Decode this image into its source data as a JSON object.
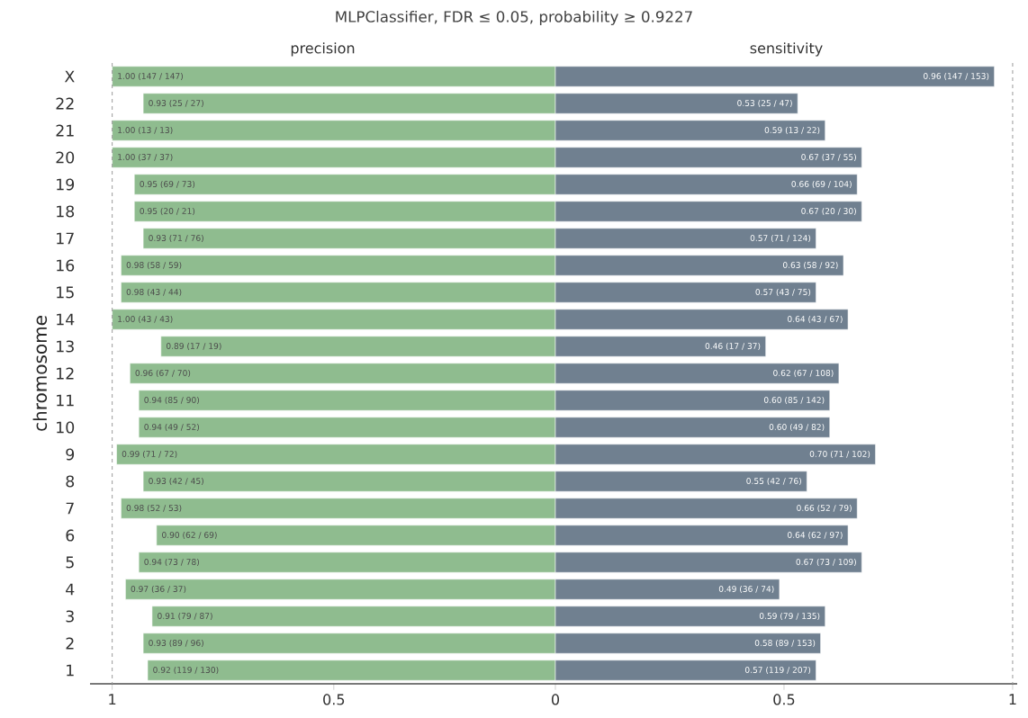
{
  "chart_data": [
    {
      "type": "bar",
      "orientation": "horizontal",
      "title": "MLPClassifier, FDR ≤ 0.05, probability ≥ 0.9227",
      "subtitle": "precision",
      "ylabel": "chromosome",
      "categories": [
        "X",
        "22",
        "21",
        "20",
        "19",
        "18",
        "17",
        "16",
        "15",
        "14",
        "13",
        "12",
        "11",
        "10",
        "9",
        "8",
        "7",
        "6",
        "5",
        "4",
        "3",
        "2",
        "1"
      ],
      "values": [
        1.0,
        0.93,
        1.0,
        1.0,
        0.95,
        0.95,
        0.93,
        0.98,
        0.98,
        1.0,
        0.89,
        0.96,
        0.94,
        0.94,
        0.99,
        0.93,
        0.98,
        0.9,
        0.94,
        0.97,
        0.91,
        0.93,
        0.92
      ],
      "value_labels": [
        "1.00 (147 / 147)",
        "0.93 (25 / 27)",
        "1.00 (13 / 13)",
        "1.00 (37 / 37)",
        "0.95 (69 / 73)",
        "0.95 (20 / 21)",
        "0.93 (71 / 76)",
        "0.98 (58 / 59)",
        "0.98 (43 / 44)",
        "1.00 (43 / 43)",
        "0.89 (17 / 19)",
        "0.96 (67 / 70)",
        "0.94 (85 / 90)",
        "0.94 (49 / 52)",
        "0.99 (71 / 72)",
        "0.93 (42 / 45)",
        "0.98 (52 / 53)",
        "0.90 (62 / 69)",
        "0.94 (73 / 78)",
        "0.97 (36 / 37)",
        "0.91 (79 / 87)",
        "0.93 (89 / 96)",
        "0.92 (119 / 130)"
      ],
      "color": "#8fbc8f",
      "xlim": [
        1.05,
        0
      ],
      "xticks": [
        1,
        0.5,
        0
      ],
      "ref_lines": [
        {
          "axis": "x",
          "value": 1,
          "color": "#a0a0a0",
          "line_style": "dashed"
        }
      ]
    },
    {
      "type": "bar",
      "orientation": "horizontal",
      "subtitle": "sensitivity",
      "categories": [
        null,
        null,
        null,
        null,
        null,
        null,
        null,
        null,
        null,
        null,
        null,
        null,
        null,
        null,
        null,
        null,
        null,
        null,
        null,
        null,
        null,
        null,
        null
      ],
      "values": [
        0.96,
        0.53,
        0.59,
        0.67,
        0.66,
        0.67,
        0.57,
        0.63,
        0.57,
        0.64,
        0.46,
        0.62,
        0.6,
        0.6,
        0.7,
        0.55,
        0.66,
        0.64,
        0.67,
        0.49,
        0.59,
        0.58,
        0.57
      ],
      "value_labels": [
        "0.96 (147 / 153)",
        "0.53 (25 / 47)",
        "0.59 (13 / 22)",
        "0.67 (37 / 55)",
        "0.66 (69 / 104)",
        "0.67 (20 / 30)",
        "0.57 (71 / 124)",
        "0.63 (58 / 92)",
        "0.57 (43 / 75)",
        "0.64 (43 / 67)",
        "0.46 (17 / 37)",
        "0.62 (67 / 108)",
        "0.60 (85 / 142)",
        "0.60 (49 / 82)",
        "0.70 (71 / 102)",
        "0.55 (42 / 76)",
        "0.66 (52 / 79)",
        "0.64 (62 / 97)",
        "0.67 (73 / 109)",
        "0.49 (36 / 74)",
        "0.59 (79 / 135)",
        "0.58 (89 / 153)",
        "0.57 (119 / 207)"
      ],
      "color": "#708090",
      "xlim": [
        0,
        1.01
      ],
      "xticks": [
        0.5,
        1
      ],
      "tick_labels": "x",
      "ref_lines": [
        {
          "axis": "x",
          "value": 1,
          "color": "#a0a0a0",
          "line_style": "dashed"
        }
      ]
    }
  ]
}
